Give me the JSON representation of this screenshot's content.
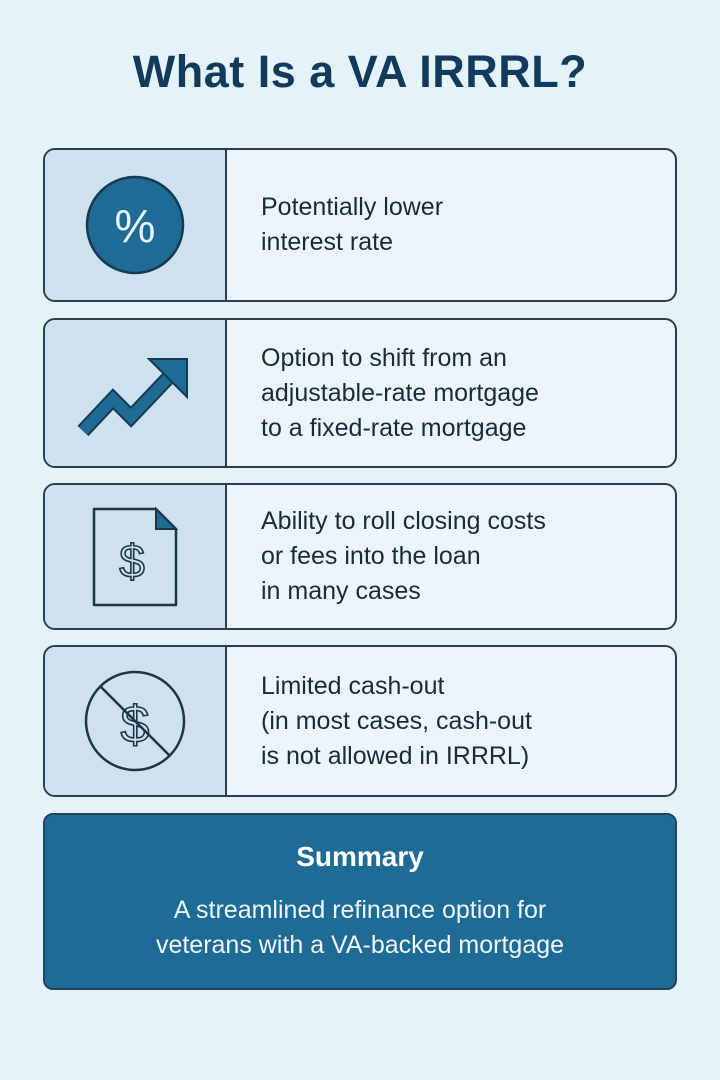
{
  "title": "What Is a VA IRRRL?",
  "colors": {
    "accent": "#1e6b96",
    "background": "#e4f2fa",
    "icon_panel": "#cde2ee",
    "text": "#1d2a35"
  },
  "items": [
    {
      "icon": "percent-icon",
      "lines": [
        "Potentially lower",
        "interest rate"
      ]
    },
    {
      "icon": "trend-up-arrow-icon",
      "lines": [
        "Option to shift from an",
        "adjustable-rate mortgage",
        "to a fixed-rate mortgage"
      ]
    },
    {
      "icon": "dollar-document-icon",
      "lines": [
        "Ability to roll closing costs",
        "or fees into the loan",
        "in many cases"
      ]
    },
    {
      "icon": "no-dollar-icon",
      "lines": [
        "Limited cash-out",
        "(in most cases, cash-out",
        "is not allowed in IRRRL)"
      ]
    }
  ],
  "summary": {
    "heading": "Summary",
    "lines": [
      "A streamlined refinance option for",
      "veterans with a VA-backed mortgage"
    ]
  }
}
